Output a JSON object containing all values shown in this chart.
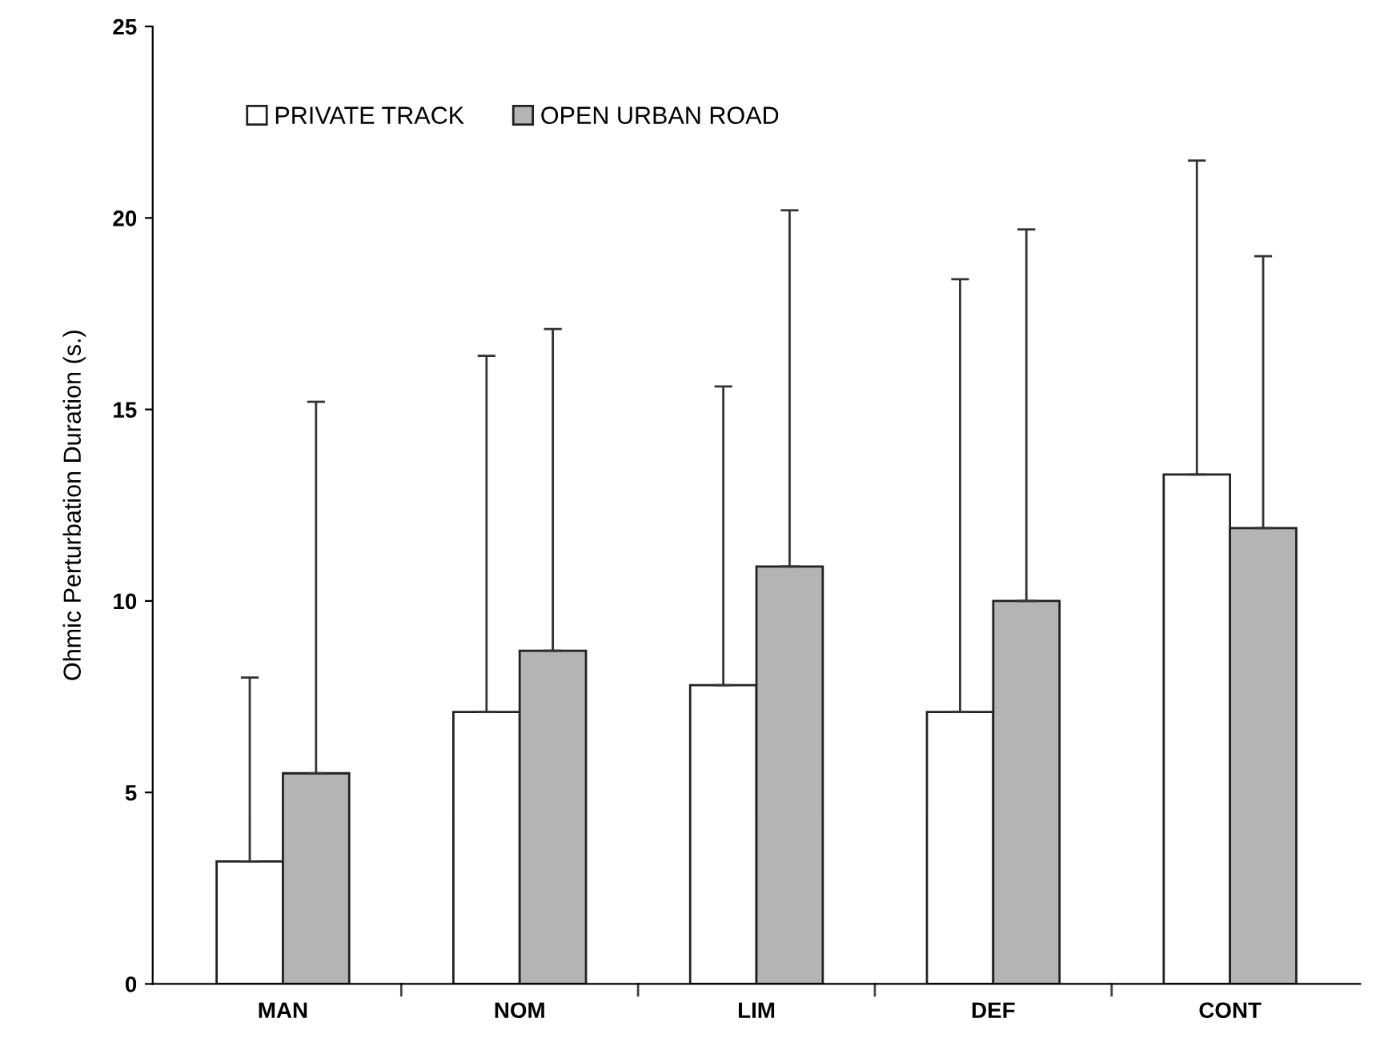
{
  "chart_data": {
    "type": "bar",
    "ylabel": "Ohmic Perturbation Duration (s.)",
    "categories": [
      "MAN",
      "NOM",
      "LIM",
      "DEF",
      "CONT"
    ],
    "series": [
      {
        "name": "PRIVATE TRACK",
        "color": "#ffffff",
        "values": [
          3.2,
          7.1,
          7.8,
          7.1,
          13.3
        ],
        "errors": [
          [
            3.2,
            8.0
          ],
          [
            7.1,
            16.4
          ],
          [
            7.8,
            15.6
          ],
          [
            7.1,
            18.4
          ],
          [
            13.3,
            21.5
          ]
        ]
      },
      {
        "name": "OPEN URBAN ROAD",
        "color": "#b4b4b4",
        "values": [
          5.5,
          8.7,
          10.9,
          10.0,
          11.9
        ],
        "errors": [
          [
            5.5,
            15.2
          ],
          [
            8.7,
            17.1
          ],
          [
            10.9,
            20.2
          ],
          [
            10.0,
            19.7
          ],
          [
            11.9,
            19.0
          ]
        ]
      }
    ],
    "ylim": [
      0,
      25
    ],
    "yticks": [
      0,
      5,
      10,
      15,
      20,
      25
    ],
    "grid": false,
    "legend": "top left"
  }
}
